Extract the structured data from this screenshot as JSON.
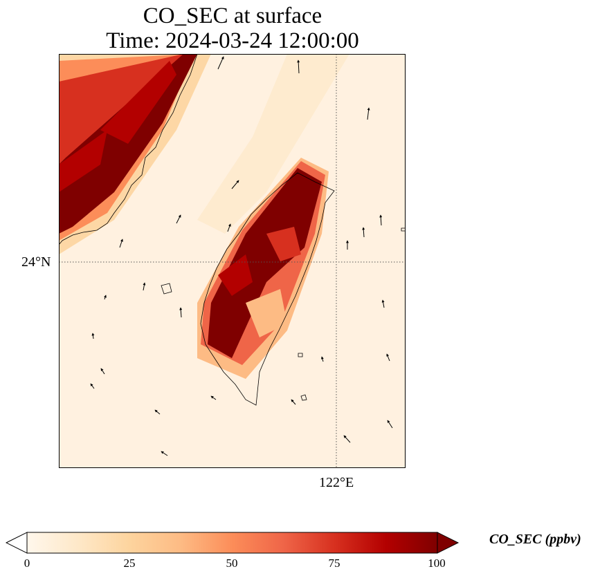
{
  "title": {
    "line1": "CO_SEC at surface",
    "line2": "Time: 2024-03-24 12:00:00"
  },
  "axes": {
    "lat_tick": "24°N",
    "lon_tick": "122°E"
  },
  "colorbar": {
    "label": "CO_SEC (ppbv)",
    "ticks": [
      "0",
      "25",
      "50",
      "75",
      "100"
    ],
    "min": 0,
    "max": 100,
    "colormap": "OrRd",
    "extend": "both",
    "colors": [
      "#fff7ec",
      "#fee8c8",
      "#fdd49e",
      "#fdbb84",
      "#fc8d59",
      "#ef6548",
      "#d7301f",
      "#b30000",
      "#7f0000"
    ]
  },
  "map": {
    "projection": "lat-lon",
    "gridlines": "dotted",
    "coastlines": true,
    "wind_vectors": true
  }
}
